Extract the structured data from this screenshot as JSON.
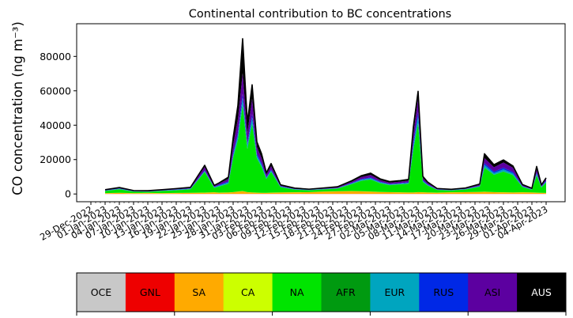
{
  "chart_data": {
    "type": "area",
    "title": "Continental contribution to BC concentrations",
    "ylabel": "CO concentration (ng m⁻³)",
    "xlabel": "",
    "ylim": [
      -4500,
      99000
    ],
    "xlim": [
      "2022-12-26",
      "2023-04-08"
    ],
    "yticks": [
      0,
      20000,
      40000,
      60000,
      80000
    ],
    "ytick_labels": [
      "0",
      "20000",
      "40000",
      "60000",
      "80000"
    ],
    "xtick_dates": [
      "2022-12-29",
      "2023-01-01",
      "2023-01-04",
      "2023-01-07",
      "2023-01-10",
      "2023-01-13",
      "2023-01-16",
      "2023-01-19",
      "2023-01-22",
      "2023-01-25",
      "2023-01-28",
      "2023-01-31",
      "2023-02-03",
      "2023-02-06",
      "2023-02-09",
      "2023-02-12",
      "2023-02-15",
      "2023-02-18",
      "2023-02-21",
      "2023-02-24",
      "2023-02-27",
      "2023-03-02",
      "2023-03-05",
      "2023-03-08",
      "2023-03-11",
      "2023-03-14",
      "2023-03-17",
      "2023-03-20",
      "2023-03-23",
      "2023-03-26",
      "2023-03-29",
      "2023-04-01",
      "2023-04-04"
    ],
    "xtick_labels": [
      "29-Dec-2022",
      "01-Jan-2023",
      "04-Jan-2023",
      "07-Jan-2023",
      "10-Jan-2023",
      "13-Jan-2023",
      "16-Jan-2023",
      "19-Jan-2023",
      "22-Jan-2023",
      "25-Jan-2023",
      "28-Jan-2023",
      "31-Jan-2023",
      "03-Feb-2023",
      "06-Feb-2023",
      "09-Feb-2023",
      "12-Feb-2023",
      "15-Feb-2023",
      "18-Feb-2023",
      "21-Feb-2023",
      "24-Feb-2023",
      "27-Feb-2023",
      "02-Mar-2023",
      "05-Mar-2023",
      "08-Mar-2023",
      "11-Mar-2023",
      "14-Mar-2023",
      "17-Mar-2023",
      "20-Mar-2023",
      "23-Mar-2023",
      "26-Mar-2023",
      "29-Mar-2023",
      "01-Apr-2023",
      "04-Apr-2023"
    ],
    "x": [
      "2023-01-01",
      "2023-01-04",
      "2023-01-07",
      "2023-01-10",
      "2023-01-13",
      "2023-01-16",
      "2023-01-19",
      "2023-01-22",
      "2023-01-24",
      "2023-01-25",
      "2023-01-27",
      "2023-01-28",
      "2023-01-29",
      "2023-01-30",
      "2023-01-31",
      "2023-02-01",
      "2023-02-02",
      "2023-02-03",
      "2023-02-04",
      "2023-02-05",
      "2023-02-07",
      "2023-02-10",
      "2023-02-13",
      "2023-02-16",
      "2023-02-19",
      "2023-02-22",
      "2023-02-24",
      "2023-02-26",
      "2023-02-28",
      "2023-03-02",
      "2023-03-04",
      "2023-03-06",
      "2023-03-07",
      "2023-03-08",
      "2023-03-09",
      "2023-03-10",
      "2023-03-12",
      "2023-03-15",
      "2023-03-18",
      "2023-03-21",
      "2023-03-22",
      "2023-03-24",
      "2023-03-26",
      "2023-03-28",
      "2023-03-30",
      "2023-04-01",
      "2023-04-02",
      "2023-04-03",
      "2023-04-04"
    ],
    "series": [
      {
        "name": "OCE",
        "values": [
          50,
          50,
          50,
          50,
          50,
          50,
          50,
          50,
          50,
          50,
          50,
          50,
          50,
          50,
          50,
          50,
          50,
          50,
          50,
          50,
          50,
          50,
          50,
          50,
          50,
          50,
          50,
          50,
          50,
          50,
          50,
          50,
          50,
          50,
          50,
          50,
          50,
          50,
          50,
          50,
          50,
          50,
          50,
          50,
          50,
          50,
          50,
          50,
          50
        ]
      },
      {
        "name": "GNL",
        "values": [
          50,
          50,
          50,
          50,
          50,
          50,
          50,
          50,
          50,
          50,
          50,
          50,
          50,
          50,
          50,
          50,
          50,
          50,
          50,
          50,
          50,
          50,
          50,
          50,
          50,
          50,
          50,
          50,
          50,
          50,
          50,
          50,
          50,
          50,
          50,
          50,
          50,
          50,
          50,
          50,
          50,
          50,
          50,
          50,
          50,
          50,
          50,
          50,
          50
        ]
      },
      {
        "name": "SA",
        "values": [
          300,
          500,
          300,
          400,
          300,
          400,
          500,
          600,
          800,
          600,
          700,
          900,
          1200,
          1500,
          900,
          700,
          600,
          500,
          500,
          600,
          700,
          800,
          900,
          1200,
          1400,
          1500,
          1400,
          1200,
          1000,
          900,
          800,
          700,
          700,
          900,
          800,
          700,
          600,
          800,
          900,
          1000,
          1100,
          900,
          800,
          700,
          800,
          700,
          600,
          500,
          400
        ]
      },
      {
        "name": "CA",
        "values": [
          100,
          100,
          100,
          100,
          100,
          100,
          100,
          100,
          100,
          100,
          100,
          100,
          100,
          100,
          100,
          100,
          100,
          100,
          100,
          100,
          100,
          100,
          100,
          100,
          100,
          100,
          100,
          100,
          100,
          100,
          100,
          100,
          100,
          100,
          100,
          100,
          100,
          100,
          100,
          100,
          100,
          100,
          100,
          100,
          100,
          100,
          100,
          100,
          100
        ]
      },
      {
        "name": "NA",
        "values": [
          1200,
          2000,
          800,
          600,
          1200,
          1500,
          2000,
          12000,
          2500,
          3500,
          5000,
          20000,
          30000,
          50000,
          25000,
          40000,
          20000,
          15000,
          8000,
          12000,
          3000,
          1500,
          1000,
          1200,
          1500,
          4000,
          6000,
          7000,
          5000,
          4000,
          4500,
          5000,
          25000,
          40000,
          6000,
          4000,
          1500,
          1000,
          1500,
          3000,
          14000,
          10000,
          12000,
          10000,
          3000,
          1500,
          10000,
          3000,
          6000
        ]
      },
      {
        "name": "AFR",
        "values": [
          100,
          100,
          100,
          100,
          100,
          100,
          100,
          100,
          100,
          100,
          100,
          100,
          100,
          100,
          100,
          100,
          100,
          100,
          100,
          100,
          100,
          100,
          100,
          100,
          100,
          100,
          100,
          100,
          100,
          100,
          100,
          100,
          100,
          100,
          100,
          100,
          100,
          100,
          100,
          100,
          100,
          100,
          100,
          100,
          100,
          100,
          100,
          100,
          100
        ]
      },
      {
        "name": "EUR",
        "values": [
          200,
          300,
          200,
          200,
          200,
          300,
          300,
          500,
          400,
          500,
          800,
          1500,
          2500,
          4000,
          2000,
          3500,
          1500,
          1200,
          600,
          800,
          300,
          200,
          200,
          200,
          200,
          400,
          600,
          700,
          500,
          400,
          400,
          500,
          2500,
          4000,
          600,
          400,
          200,
          200,
          200,
          300,
          1500,
          1000,
          1200,
          1000,
          300,
          200,
          1000,
          300,
          600
        ]
      },
      {
        "name": "RUS",
        "values": [
          100,
          150,
          100,
          100,
          100,
          150,
          150,
          300,
          200,
          300,
          500,
          1000,
          1500,
          2500,
          1200,
          2000,
          1000,
          800,
          400,
          500,
          200,
          100,
          100,
          100,
          100,
          200,
          300,
          400,
          300,
          200,
          200,
          300,
          1500,
          2500,
          400,
          200,
          100,
          100,
          100,
          200,
          1000,
          800,
          1000,
          800,
          200,
          100,
          600,
          200,
          400
        ]
      },
      {
        "name": "ASI",
        "values": [
          300,
          400,
          200,
          200,
          300,
          400,
          500,
          2000,
          600,
          900,
          1500,
          5000,
          8000,
          12000,
          6000,
          9000,
          4000,
          3000,
          1500,
          2000,
          500,
          300,
          200,
          300,
          400,
          800,
          1200,
          1500,
          1000,
          800,
          900,
          1000,
          5000,
          8000,
          1200,
          800,
          300,
          200,
          300,
          600,
          3000,
          2500,
          3000,
          2500,
          600,
          300,
          2000,
          600,
          1200
        ]
      },
      {
        "name": "AUS",
        "values": [
          100,
          100,
          100,
          100,
          100,
          100,
          100,
          1000,
          200,
          300,
          1000,
          4000,
          8000,
          20000,
          6000,
          8000,
          3000,
          2500,
          1000,
          1500,
          300,
          200,
          100,
          200,
          300,
          500,
          800,
          1000,
          700,
          600,
          600,
          700,
          4000,
          4000,
          1000,
          600,
          200,
          100,
          200,
          400,
          2500,
          1500,
          1500,
          1000,
          300,
          200,
          1500,
          400,
          500
        ]
      }
    ],
    "legend": {
      "placement": "bottom-colorbar",
      "entries": [
        "OCE",
        "GNL",
        "SA",
        "CA",
        "NA",
        "AFR",
        "EUR",
        "RUS",
        "ASI",
        "AUS"
      ],
      "colors": [
        "#c8c8c8",
        "#ee0000",
        "#ffaa00",
        "#ccff00",
        "#00e400",
        "#009a10",
        "#00a5bf",
        "#0028e6",
        "#5c00a0",
        "#000000"
      ],
      "text_colors": [
        "#000000",
        "#000000",
        "#000000",
        "#000000",
        "#000000",
        "#000000",
        "#000000",
        "#000000",
        "#000000",
        "#ffffff"
      ]
    },
    "grid": false
  }
}
